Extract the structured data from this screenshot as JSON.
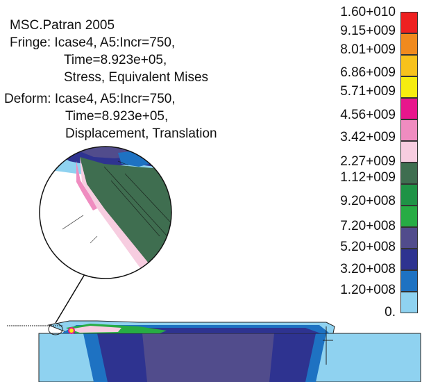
{
  "header": {
    "app": "MSC.Patran 2005",
    "fringe_line1": "Fringe: Icase4, A5:Incr=750,",
    "fringe_line2": "Time=8.923e+05,",
    "fringe_line3": "Stress, Equivalent Mises",
    "deform_line1": "Deform: Icase4, A5:Incr=750,",
    "deform_line2": "Time=8.923e+05,",
    "deform_line3": "Displacement, Translation"
  },
  "legend": {
    "labels": [
      "1.60+010",
      "9.15+009",
      "8.01+009",
      "6.86+009",
      "5.71+009",
      "4.56+009",
      "3.42+009",
      "2.27+009",
      "1.12+009",
      "9.20+008",
      "7.20+008",
      "5.20+008",
      "3.20+008",
      "1.20+008",
      "0."
    ],
    "colors": [
      "#ee2020",
      "#f08a1e",
      "#f8c21c",
      "#f6ec10",
      "#e8168c",
      "#ef8cc0",
      "#f7cde0",
      "#3f6e50",
      "#1f9346",
      "#27ac44",
      "#514c8c",
      "#2e3390",
      "#1e72c2",
      "#8fd2f0"
    ]
  },
  "detail_label": "zoomed contact region (magnified view)"
}
